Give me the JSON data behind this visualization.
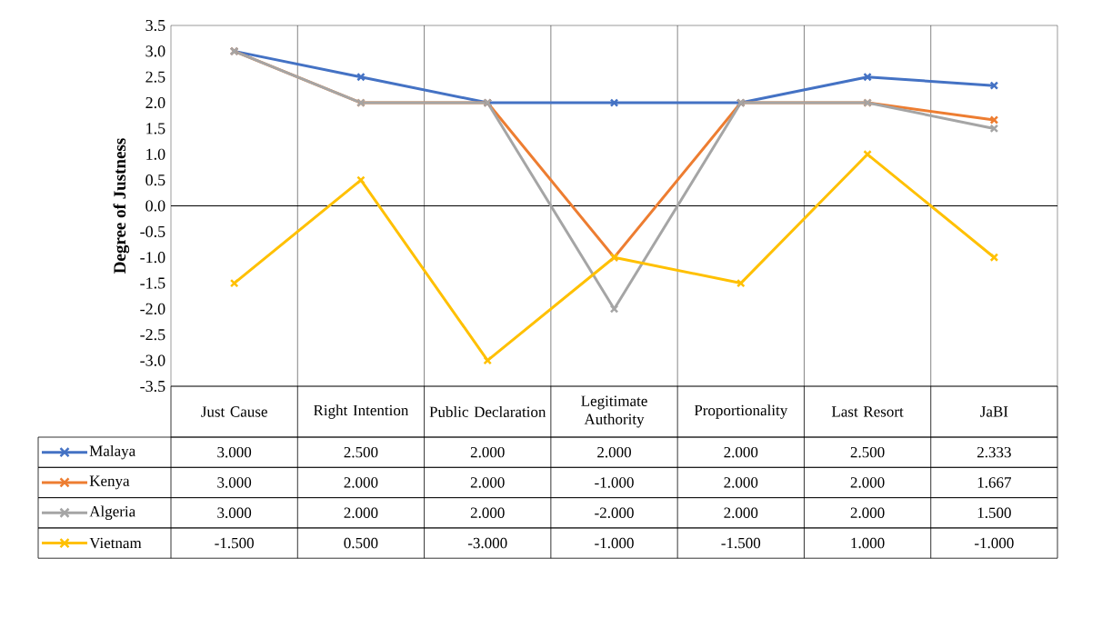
{
  "chart_data": {
    "type": "line",
    "ylabel": "Degree of Justness",
    "categories": [
      "Just Cause",
      "Right Intention",
      "Public Declaration",
      "Legitimate Authority",
      "Proportionality",
      "Last Resort",
      "JaBI"
    ],
    "series": [
      {
        "name": "Malaya",
        "color": "#4472c4",
        "values": [
          3.0,
          2.5,
          2.0,
          2.0,
          2.0,
          2.5,
          2.333
        ],
        "value_labels": [
          "3.000",
          "2.500",
          "2.000",
          "2.000",
          "2.000",
          "2.500",
          "2.333"
        ]
      },
      {
        "name": "Kenya",
        "color": "#ed7d31",
        "values": [
          3.0,
          2.0,
          2.0,
          -1.0,
          2.0,
          2.0,
          1.667
        ],
        "value_labels": [
          "3.000",
          "2.000",
          "2.000",
          "-1.000",
          "2.000",
          "2.000",
          "1.667"
        ]
      },
      {
        "name": "Algeria",
        "color": "#a5a5a5",
        "values": [
          3.0,
          2.0,
          2.0,
          -2.0,
          2.0,
          2.0,
          1.5
        ],
        "value_labels": [
          "3.000",
          "2.000",
          "2.000",
          "-2.000",
          "2.000",
          "2.000",
          "1.500"
        ]
      },
      {
        "name": "Vietnam",
        "color": "#ffc000",
        "values": [
          -1.5,
          0.5,
          -3.0,
          -1.0,
          -1.5,
          1.0,
          -1.0
        ],
        "value_labels": [
          "-1.500",
          "0.500",
          "-3.000",
          "-1.000",
          "-1.500",
          "1.000",
          "-1.000"
        ]
      }
    ],
    "ylim": [
      -3.5,
      3.5
    ],
    "yticks": [
      -3.5,
      {
        "value": -3,
        "label": "-3.0"
      },
      -2.5,
      {
        "value": -2,
        "label": "-2.0"
      },
      -1.5,
      {
        "value": -1,
        "label": "-1.0"
      },
      -0.5,
      {
        "value": 0,
        "label": "0.0"
      },
      0.5,
      {
        "value": 1,
        "label": "1.0"
      },
      1.5,
      {
        "value": 2,
        "label": "2.0"
      },
      2.5,
      {
        "value": 3,
        "label": "3.0"
      },
      3.5
    ],
    "ref_lines": [
      {
        "axis": "y",
        "value": 0,
        "color": "#000000"
      }
    ],
    "grid": "x",
    "legend": "bottom",
    "marker": "cross",
    "line_style": "solid"
  }
}
